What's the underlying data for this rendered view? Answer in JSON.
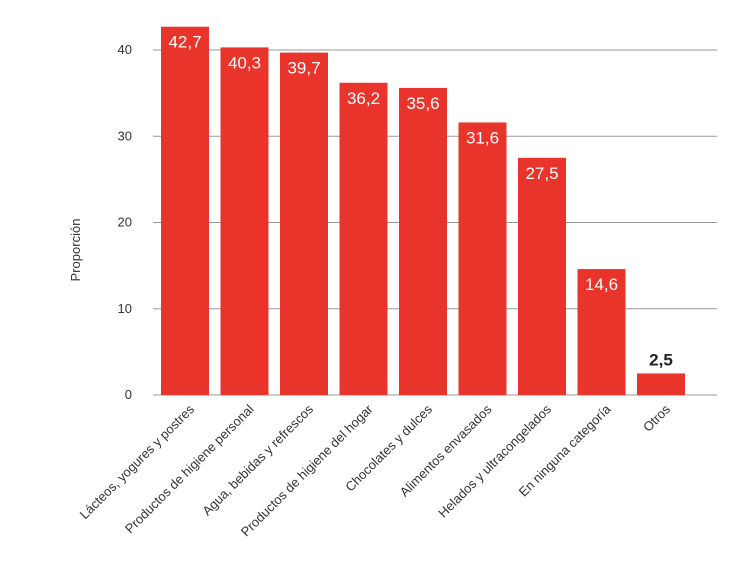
{
  "chart_data": {
    "type": "bar",
    "title": "",
    "xlabel": "",
    "ylabel": "Proporción",
    "ylim": [
      0,
      42.7
    ],
    "yticks": [
      "0",
      "10",
      "20",
      "30",
      "40"
    ],
    "grid": true,
    "bar_color": "#e8342b",
    "label_color_inside": "#ffffff",
    "label_color_outside": "#222222",
    "categories": [
      "Lácteos, yogures y postres",
      "Productos de higiene personal",
      "Agua, bebidas y refrescos",
      "Productos de higiene del hogar",
      "Chocolates y dulces",
      "Alimentos envasados",
      "Helados y ultracongelados",
      "En ninguna categoría",
      "Otros"
    ],
    "values": [
      42.7,
      40.3,
      39.7,
      36.2,
      35.6,
      31.6,
      27.5,
      14.6,
      2.5
    ],
    "value_labels": [
      "42,7",
      "40,3",
      "39,7",
      "36,2",
      "35,6",
      "31,6",
      "27,5",
      "14,6",
      "2,5"
    ]
  }
}
